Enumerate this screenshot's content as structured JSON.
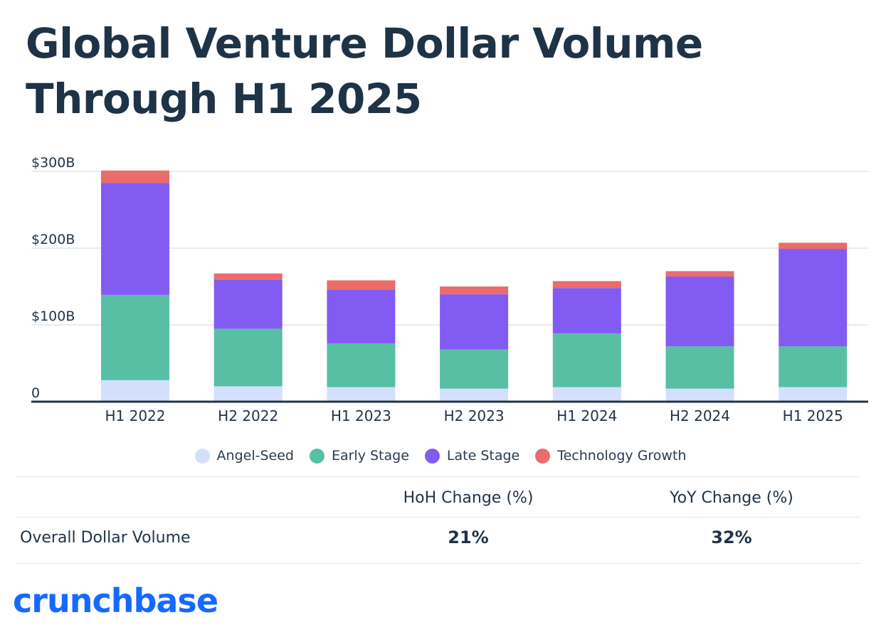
{
  "title": "Global Venture Dollar Volume Through H1 2025",
  "chart_data": {
    "type": "bar",
    "stacked": true,
    "categories": [
      "H1 2022",
      "H2 2022",
      "H1 2023",
      "H2 2023",
      "H1 2024",
      "H2 2024",
      "H1 2025"
    ],
    "series": [
      {
        "name": "Angel-Seed",
        "color": "#d4e0fb",
        "values": [
          28,
          20,
          19,
          17,
          19,
          17,
          19
        ]
      },
      {
        "name": "Early Stage",
        "color": "#58bfa5",
        "values": [
          111,
          75,
          57,
          51,
          70,
          55,
          53
        ]
      },
      {
        "name": "Late Stage",
        "color": "#825cf2",
        "values": [
          146,
          64,
          70,
          72,
          59,
          91,
          127
        ]
      },
      {
        "name": "Technology Growth",
        "color": "#ec6b6b",
        "values": [
          16,
          8,
          12,
          10,
          9,
          7,
          8
        ]
      }
    ],
    "yticks": [
      "$300B",
      "$200B",
      "$100B",
      "0"
    ],
    "ylim": [
      0,
      300
    ],
    "grid": true,
    "legend_position": "bottom"
  },
  "table": {
    "headers": [
      "HoH Change (%)",
      "YoY Change (%)"
    ],
    "row_label": "Overall Dollar Volume",
    "values": [
      "21%",
      "32%"
    ]
  },
  "logo_text": "crunchbase"
}
